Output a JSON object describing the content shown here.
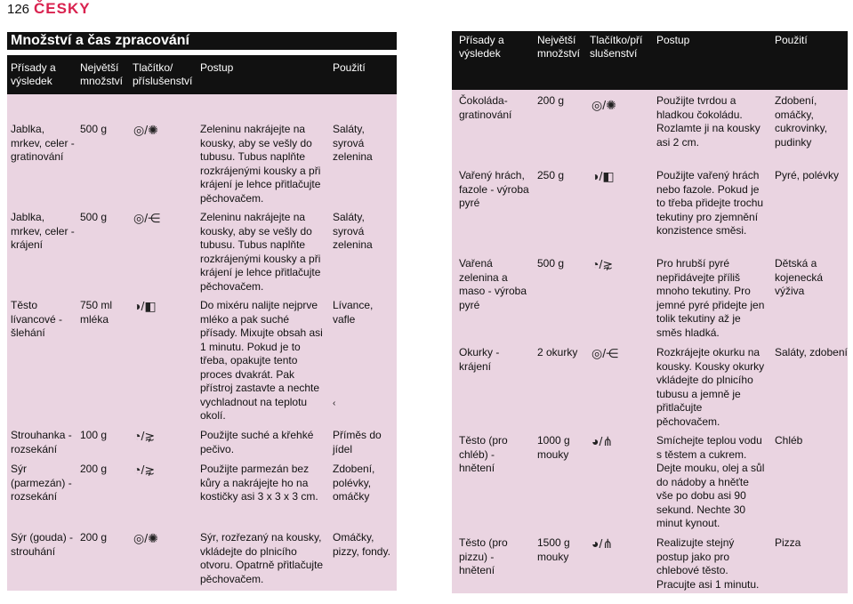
{
  "page_number": "126",
  "language": "ČESKY",
  "section_title": "Množství a čas zpracování",
  "headers": {
    "col1": "Přísady a výsledek",
    "col2": "Největší množství",
    "col3_left": "Tlačítko/ příslušenství",
    "col3_right": "Tlačítko/pří slušenství",
    "col4": "Postup",
    "col5": "Použití"
  },
  "left_rows": [
    {
      "item": "Jablka, mrkev, celer - gratinování",
      "qty": "500 g",
      "acc": "◎/✺",
      "steps": "Zeleninu nakrájejte na kousky, aby se vešly do tubusu. Tubus naplňte rozkrájenými kousky a při krájení je lehce přitlačujte pěchovačem.",
      "use": "Saláty, syrová zelenina"
    },
    {
      "item": "Jablka, mrkev, celer - krájení",
      "qty": "500 g",
      "acc": "◎/⋲",
      "steps": "Zeleninu nakrájejte na kousky, aby se vešly do tubusu. Tubus naplňte rozkrájenými kousky a při krájení je lehce přitlačujte pěchovačem.",
      "use": "Saláty, syrová zelenina"
    },
    {
      "item": "Těsto lívancové - šlehání",
      "qty": "750 ml mléka",
      "acc": "◑/◧",
      "steps": "Do mixéru nalijte nejprve mléko a pak suché přísady. Mixujte obsah asi 1 minutu. Pokud je to třeba, opakujte tento proces dvakrát. Pak přístroj zastavte a nechte vychladnout na teplotu okolí.",
      "use": "Lívance, vafle"
    },
    {
      "item": "Strouhanka - rozsekání",
      "qty": "100 g",
      "acc": "◔/⋧",
      "steps": "Použijte suché a křehké pečivo.",
      "use": "Příměs do jídel"
    },
    {
      "item": "Sýr (parmezán) - rozsekání",
      "qty": "200 g",
      "acc": "◔/⋧",
      "steps": "Použijte parmezán bez kůry a nakrájejte ho na kostičky asi 3 x 3 x 3 cm.",
      "use": "Zdobení, polévky, omáčky"
    },
    {
      "item": "Sýr (gouda) - strouhání",
      "qty": "200 g",
      "acc": "◎/✺",
      "steps": "Sýr, rozřezaný na kousky, vkládejte do plnicího otvoru. Opatrně přitlačujte pěchovačem.",
      "use": "Omáčky, pizzy, fondy."
    }
  ],
  "right_rows": [
    {
      "item": "Čokoláda-gratinování",
      "qty": "200 g",
      "acc": "◎/✺",
      "steps": "Použijte tvrdou a hladkou čokoládu. Rozlamte ji na kousky asi 2 cm.",
      "use": "Zdobení, omáčky, cukrovinky, pudinky"
    },
    {
      "item": "Vařený hrách, fazole - výroba pyré",
      "qty": "250 g",
      "acc": "◑/◧",
      "steps": "Použijte vařený hrách nebo fazole. Pokud je to třeba přidejte trochu tekutiny pro zjemnění konzistence směsi.",
      "use": "Pyré, polévky"
    },
    {
      "item": "Vařená zelenina a maso - výroba pyré",
      "qty": "500 g",
      "acc": "◔/⋧",
      "steps": "Pro hrubší pyré nepřidávejte příliš mnoho tekutiny. Pro jemné pyré přidejte jen tolik tekutiny až je směs hladká.",
      "use": "Dětská a kojenecká výživa"
    },
    {
      "item": "Okurky - krájení",
      "qty": "2 okurky",
      "acc": "◎/⋲",
      "steps": "Rozkrájejte okurku na kousky. Kousky okurky vkládejte do plnicího tubusu a jemně je přitlačujte pěchovačem.",
      "use": "Saláty, zdobení"
    },
    {
      "item": "Těsto (pro chléb) - hnětení",
      "qty": "1000 g mouky",
      "acc": "◕/⋔",
      "steps": "Smíchejte teplou vodu s těstem a cukrem. Dejte mouku, olej a sůl do nádoby a hněťte vše po dobu asi 90 sekund. Nechte 30 minut kynout.",
      "use": "Chléb"
    },
    {
      "item": "Těsto (pro pizzu) - hnětení",
      "qty": "1500 g mouky",
      "acc": "◕/⋔",
      "steps": "Realizujte stejný postup jako pro chlebové těsto. Pracujte asi 1 minutu.",
      "use": "Pizza"
    }
  ],
  "stray_mark": "‹"
}
